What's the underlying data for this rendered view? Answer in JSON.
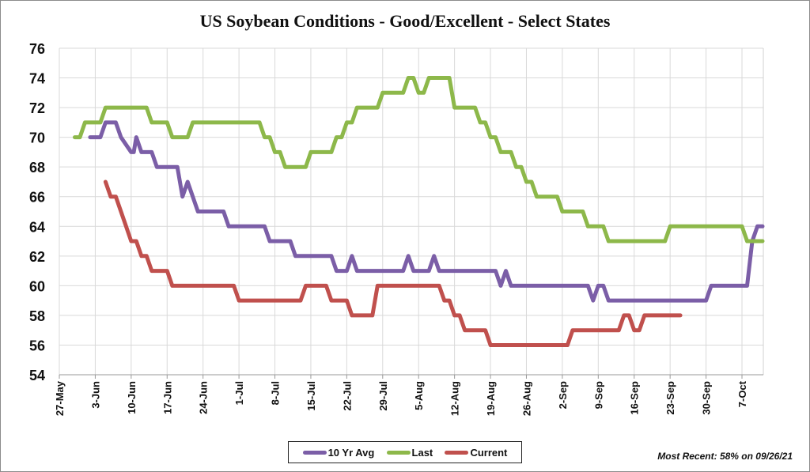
{
  "chart_data": {
    "type": "line",
    "title": "US Soybean Conditions - Good/Excellent - Select States",
    "xlabel": "",
    "ylabel": "",
    "ylim": [
      54,
      76
    ],
    "yticks": [
      54,
      56,
      58,
      60,
      62,
      64,
      66,
      68,
      70,
      72,
      74,
      76
    ],
    "x_origin_date": "27-May",
    "x_range_days": [
      0,
      140
    ],
    "xticks": [
      {
        "day": 0,
        "label": "27-May"
      },
      {
        "day": 7,
        "label": "3-Jun"
      },
      {
        "day": 14,
        "label": "10-Jun"
      },
      {
        "day": 21,
        "label": "17-Jun"
      },
      {
        "day": 28,
        "label": "24-Jun"
      },
      {
        "day": 35,
        "label": "1-Jul"
      },
      {
        "day": 42,
        "label": "8-Jul"
      },
      {
        "day": 49,
        "label": "15-Jul"
      },
      {
        "day": 56,
        "label": "22-Jul"
      },
      {
        "day": 63,
        "label": "29-Jul"
      },
      {
        "day": 70,
        "label": "5-Aug"
      },
      {
        "day": 77,
        "label": "12-Aug"
      },
      {
        "day": 84,
        "label": "19-Aug"
      },
      {
        "day": 91,
        "label": "26-Aug"
      },
      {
        "day": 98,
        "label": "2-Sep"
      },
      {
        "day": 105,
        "label": "9-Sep"
      },
      {
        "day": 112,
        "label": "16-Sep"
      },
      {
        "day": 119,
        "label": "23-Sep"
      },
      {
        "day": 126,
        "label": "30-Sep"
      },
      {
        "day": 133,
        "label": "7-Oct"
      }
    ],
    "grid": true,
    "legend_position": "bottom-center",
    "series": [
      {
        "name": "10 Yr Avg",
        "color": "#7b5ea7",
        "points": [
          [
            6,
            70
          ],
          [
            8,
            70
          ],
          [
            9,
            71
          ],
          [
            11,
            71
          ],
          [
            12,
            70
          ],
          [
            14,
            69
          ],
          [
            14.5,
            69
          ],
          [
            15,
            70
          ],
          [
            16,
            69
          ],
          [
            18,
            69
          ],
          [
            19,
            68
          ],
          [
            23,
            68
          ],
          [
            24,
            66
          ],
          [
            25,
            67
          ],
          [
            27,
            65
          ],
          [
            32,
            65
          ],
          [
            33,
            64
          ],
          [
            40,
            64
          ],
          [
            41,
            63
          ],
          [
            45,
            63
          ],
          [
            46,
            62
          ],
          [
            53,
            62
          ],
          [
            54,
            61
          ],
          [
            56,
            61
          ],
          [
            57,
            62
          ],
          [
            58,
            61
          ],
          [
            67,
            61
          ],
          [
            68,
            62
          ],
          [
            69,
            61
          ],
          [
            72,
            61
          ],
          [
            73,
            62
          ],
          [
            74,
            61
          ],
          [
            85,
            61
          ],
          [
            86,
            60
          ],
          [
            87,
            61
          ],
          [
            88,
            60
          ],
          [
            103,
            60
          ],
          [
            104,
            59
          ],
          [
            105,
            60
          ],
          [
            106,
            60
          ],
          [
            107,
            59
          ],
          [
            126,
            59
          ],
          [
            127,
            60
          ],
          [
            134,
            60
          ],
          [
            135,
            63
          ],
          [
            136,
            64
          ],
          [
            137,
            64
          ]
        ]
      },
      {
        "name": "Last",
        "color": "#8db84a",
        "points": [
          [
            3,
            70
          ],
          [
            4,
            70
          ],
          [
            5,
            71
          ],
          [
            8,
            71
          ],
          [
            9,
            72
          ],
          [
            17,
            72
          ],
          [
            18,
            71
          ],
          [
            21,
            71
          ],
          [
            22,
            70
          ],
          [
            25,
            70
          ],
          [
            26,
            71
          ],
          [
            39,
            71
          ],
          [
            40,
            70
          ],
          [
            41,
            70
          ],
          [
            42,
            69
          ],
          [
            43,
            69
          ],
          [
            44,
            68
          ],
          [
            48,
            68
          ],
          [
            49,
            69
          ],
          [
            53,
            69
          ],
          [
            54,
            70
          ],
          [
            55,
            70
          ],
          [
            56,
            71
          ],
          [
            57,
            71
          ],
          [
            58,
            72
          ],
          [
            62,
            72
          ],
          [
            63,
            73
          ],
          [
            67,
            73
          ],
          [
            68,
            74
          ],
          [
            69,
            74
          ],
          [
            70,
            73
          ],
          [
            71,
            73
          ],
          [
            72,
            74
          ],
          [
            76,
            74
          ],
          [
            77,
            72
          ],
          [
            81,
            72
          ],
          [
            82,
            71
          ],
          [
            83,
            71
          ],
          [
            84,
            70
          ],
          [
            85,
            70
          ],
          [
            86,
            69
          ],
          [
            88,
            69
          ],
          [
            89,
            68
          ],
          [
            90,
            68
          ],
          [
            91,
            67
          ],
          [
            92,
            67
          ],
          [
            93,
            66
          ],
          [
            97,
            66
          ],
          [
            98,
            65
          ],
          [
            102,
            65
          ],
          [
            103,
            64
          ],
          [
            106,
            64
          ],
          [
            107,
            63
          ],
          [
            118,
            63
          ],
          [
            119,
            64
          ],
          [
            133,
            64
          ],
          [
            134,
            63
          ],
          [
            137,
            63
          ]
        ]
      },
      {
        "name": "Current",
        "color": "#c0504d",
        "points": [
          [
            9,
            67
          ],
          [
            10,
            66
          ],
          [
            11,
            66
          ],
          [
            12,
            65
          ],
          [
            13,
            64
          ],
          [
            14,
            63
          ],
          [
            15,
            63
          ],
          [
            16,
            62
          ],
          [
            17,
            62
          ],
          [
            18,
            61
          ],
          [
            21,
            61
          ],
          [
            22,
            60
          ],
          [
            34,
            60
          ],
          [
            35,
            59
          ],
          [
            47,
            59
          ],
          [
            48,
            60
          ],
          [
            52,
            60
          ],
          [
            53,
            59
          ],
          [
            56,
            59
          ],
          [
            57,
            58
          ],
          [
            61,
            58
          ],
          [
            62,
            60
          ],
          [
            74,
            60
          ],
          [
            75,
            59
          ],
          [
            76,
            59
          ],
          [
            77,
            58
          ],
          [
            78,
            58
          ],
          [
            79,
            57
          ],
          [
            83,
            57
          ],
          [
            84,
            56
          ],
          [
            99,
            56
          ],
          [
            100,
            57
          ],
          [
            109,
            57
          ],
          [
            110,
            58
          ],
          [
            111,
            58
          ],
          [
            112,
            57
          ],
          [
            113,
            57
          ],
          [
            114,
            58
          ],
          [
            121,
            58
          ]
        ]
      }
    ],
    "annotation": "Most Recent: 58% on 09/26/21"
  }
}
